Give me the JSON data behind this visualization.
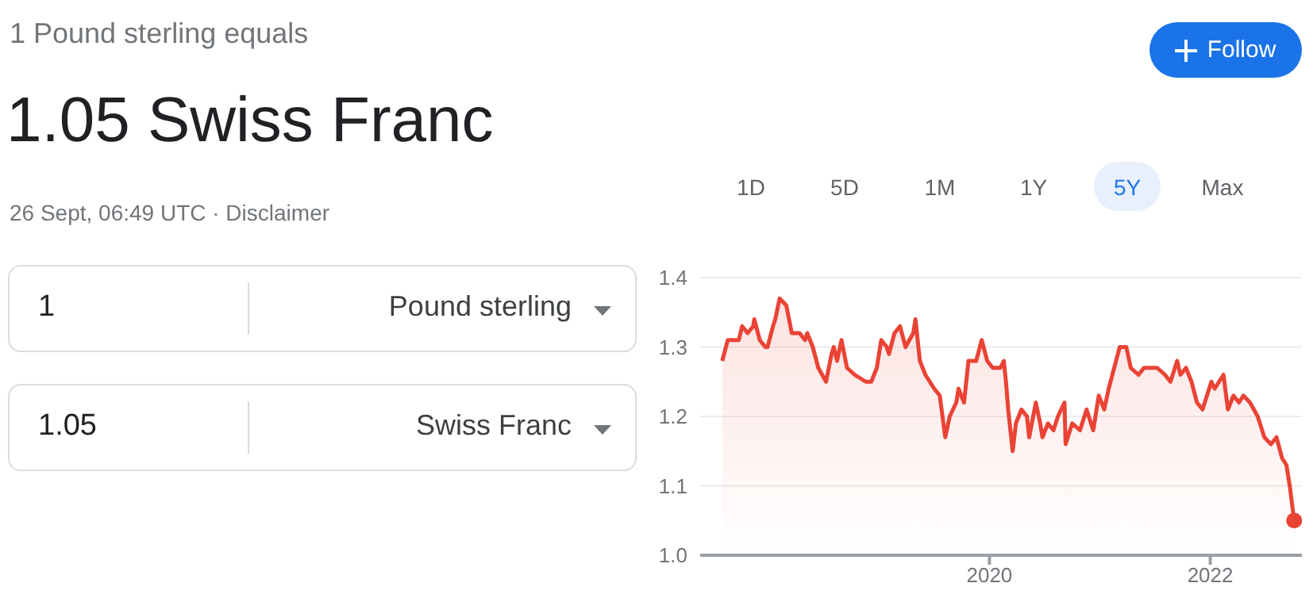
{
  "chart_data": {
    "type": "area",
    "title": "1 Pound sterling equals",
    "subtitle": "1.05 Swiss Franc",
    "annotations": [
      "26 Sept, 06:49 UTC · Disclaimer",
      "Follow",
      "1D",
      "5D",
      "1M",
      "1Y",
      "5Y",
      "Max",
      "1",
      "Pound sterling",
      "1.05",
      "Swiss Franc"
    ],
    "x": [
      2017.58,
      2017.63,
      2017.68,
      2017.73,
      2017.76,
      2017.81,
      2017.86,
      2017.87,
      2017.92,
      2017.97,
      2017.99,
      2018.04,
      2018.06,
      2018.1,
      2018.16,
      2018.21,
      2018.28,
      2018.33,
      2018.35,
      2018.4,
      2018.45,
      2018.52,
      2018.57,
      2018.59,
      2018.62,
      2018.66,
      2018.71,
      2018.78,
      2018.88,
      2018.93,
      2018.98,
      2019.02,
      2019.07,
      2019.09,
      2019.14,
      2019.19,
      2019.24,
      2019.31,
      2019.33,
      2019.37,
      2019.42,
      2019.5,
      2019.55,
      2019.6,
      2019.64,
      2019.7,
      2019.72,
      2019.77,
      2019.81,
      2019.88,
      2019.93,
      2019.98,
      2020.03,
      2020.1,
      2020.13,
      2020.15,
      2020.17,
      2020.21,
      2020.24,
      2020.29,
      2020.34,
      2020.36,
      2020.42,
      2020.46,
      2020.48,
      2020.53,
      2020.58,
      2020.62,
      2020.68,
      2020.69,
      2020.75,
      2020.82,
      2020.88,
      2020.94,
      2020.99,
      2021.04,
      2021.08,
      2021.13,
      2021.18,
      2021.24,
      2021.28,
      2021.35,
      2021.4,
      2021.47,
      2021.52,
      2021.59,
      2021.64,
      2021.7,
      2021.73,
      2021.78,
      2021.83,
      2021.88,
      2021.93,
      2021.97,
      2022.01,
      2022.04,
      2022.12,
      2022.16,
      2022.21,
      2022.26,
      2022.3,
      2022.36,
      2022.43,
      2022.49,
      2022.55,
      2022.6,
      2022.65,
      2022.69,
      2022.72,
      2022.76
    ],
    "series": [
      {
        "color": "#ea4335",
        "values": [
          1.28,
          1.31,
          1.31,
          1.31,
          1.33,
          1.32,
          1.33,
          1.34,
          1.31,
          1.3,
          1.3,
          1.33,
          1.34,
          1.37,
          1.36,
          1.32,
          1.32,
          1.31,
          1.32,
          1.3,
          1.27,
          1.25,
          1.29,
          1.3,
          1.28,
          1.31,
          1.27,
          1.26,
          1.25,
          1.25,
          1.27,
          1.31,
          1.3,
          1.29,
          1.32,
          1.33,
          1.3,
          1.32,
          1.34,
          1.28,
          1.26,
          1.24,
          1.23,
          1.17,
          1.2,
          1.22,
          1.24,
          1.22,
          1.28,
          1.28,
          1.31,
          1.28,
          1.27,
          1.27,
          1.28,
          1.25,
          1.21,
          1.15,
          1.19,
          1.21,
          1.2,
          1.17,
          1.22,
          1.19,
          1.17,
          1.19,
          1.18,
          1.2,
          1.22,
          1.16,
          1.19,
          1.18,
          1.21,
          1.18,
          1.23,
          1.21,
          1.24,
          1.27,
          1.3,
          1.3,
          1.27,
          1.26,
          1.27,
          1.27,
          1.27,
          1.26,
          1.25,
          1.28,
          1.26,
          1.27,
          1.25,
          1.22,
          1.21,
          1.23,
          1.25,
          1.24,
          1.26,
          1.21,
          1.23,
          1.22,
          1.23,
          1.22,
          1.2,
          1.17,
          1.16,
          1.17,
          1.14,
          1.13,
          1.1,
          1.05
        ]
      }
    ],
    "xlim": [
      2017.38,
      2022.83
    ],
    "xticks": [
      2020,
      2022
    ],
    "ylim": [
      1.0,
      1.4
    ],
    "yticks": [
      {
        "value": 1,
        "label": "1.0"
      },
      1.1,
      1.2,
      1.3,
      1.4
    ],
    "grid": "y",
    "marker": "none",
    "line_style": "solid"
  }
}
